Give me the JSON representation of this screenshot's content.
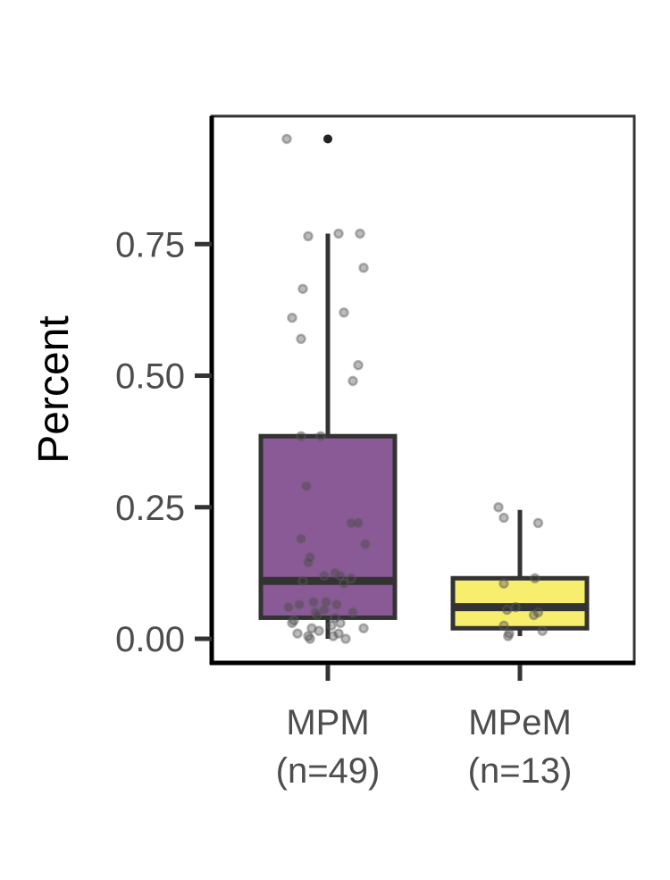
{
  "chart_data": {
    "type": "box",
    "title": "",
    "xlabel": "",
    "ylabel": "Percent",
    "ylim": [
      -0.02,
      0.95
    ],
    "yticks": [
      0.0,
      0.25,
      0.5,
      0.75
    ],
    "ytick_labels": [
      "0.00",
      "0.25",
      "0.50",
      "0.75"
    ],
    "grid": false,
    "legend": "none",
    "groups": [
      {
        "line1": "MPM",
        "line2": "(n=49)",
        "color": "#8a5a96",
        "stats": {
          "q1": 0.04,
          "median": 0.11,
          "q3": 0.385,
          "whisker_low": 0.0,
          "whisker_high": 0.77
        },
        "outliers": [
          0.95
        ],
        "points": [
          0.95,
          0.77,
          0.77,
          0.765,
          0.705,
          0.665,
          0.62,
          0.61,
          0.57,
          0.52,
          0.49,
          0.385,
          0.385,
          0.29,
          0.22,
          0.22,
          0.19,
          0.18,
          0.155,
          0.145,
          0.125,
          0.12,
          0.12,
          0.115,
          0.11,
          0.105,
          0.07,
          0.07,
          0.065,
          0.065,
          0.06,
          0.055,
          0.05,
          0.05,
          0.045,
          0.04,
          0.035,
          0.03,
          0.03,
          0.025,
          0.02,
          0.02,
          0.015,
          0.01,
          0.01,
          0.005,
          0.005,
          0.0,
          0.0
        ]
      },
      {
        "line1": "MPeM",
        "line2": "(n=13)",
        "color": "#f8ee6e",
        "stats": {
          "q1": 0.02,
          "median": 0.06,
          "q3": 0.115,
          "whisker_low": 0.005,
          "whisker_high": 0.245
        },
        "outliers": [],
        "points": [
          0.25,
          0.23,
          0.22,
          0.115,
          0.105,
          0.06,
          0.055,
          0.05,
          0.045,
          0.025,
          0.015,
          0.01,
          0.005
        ]
      }
    ]
  }
}
